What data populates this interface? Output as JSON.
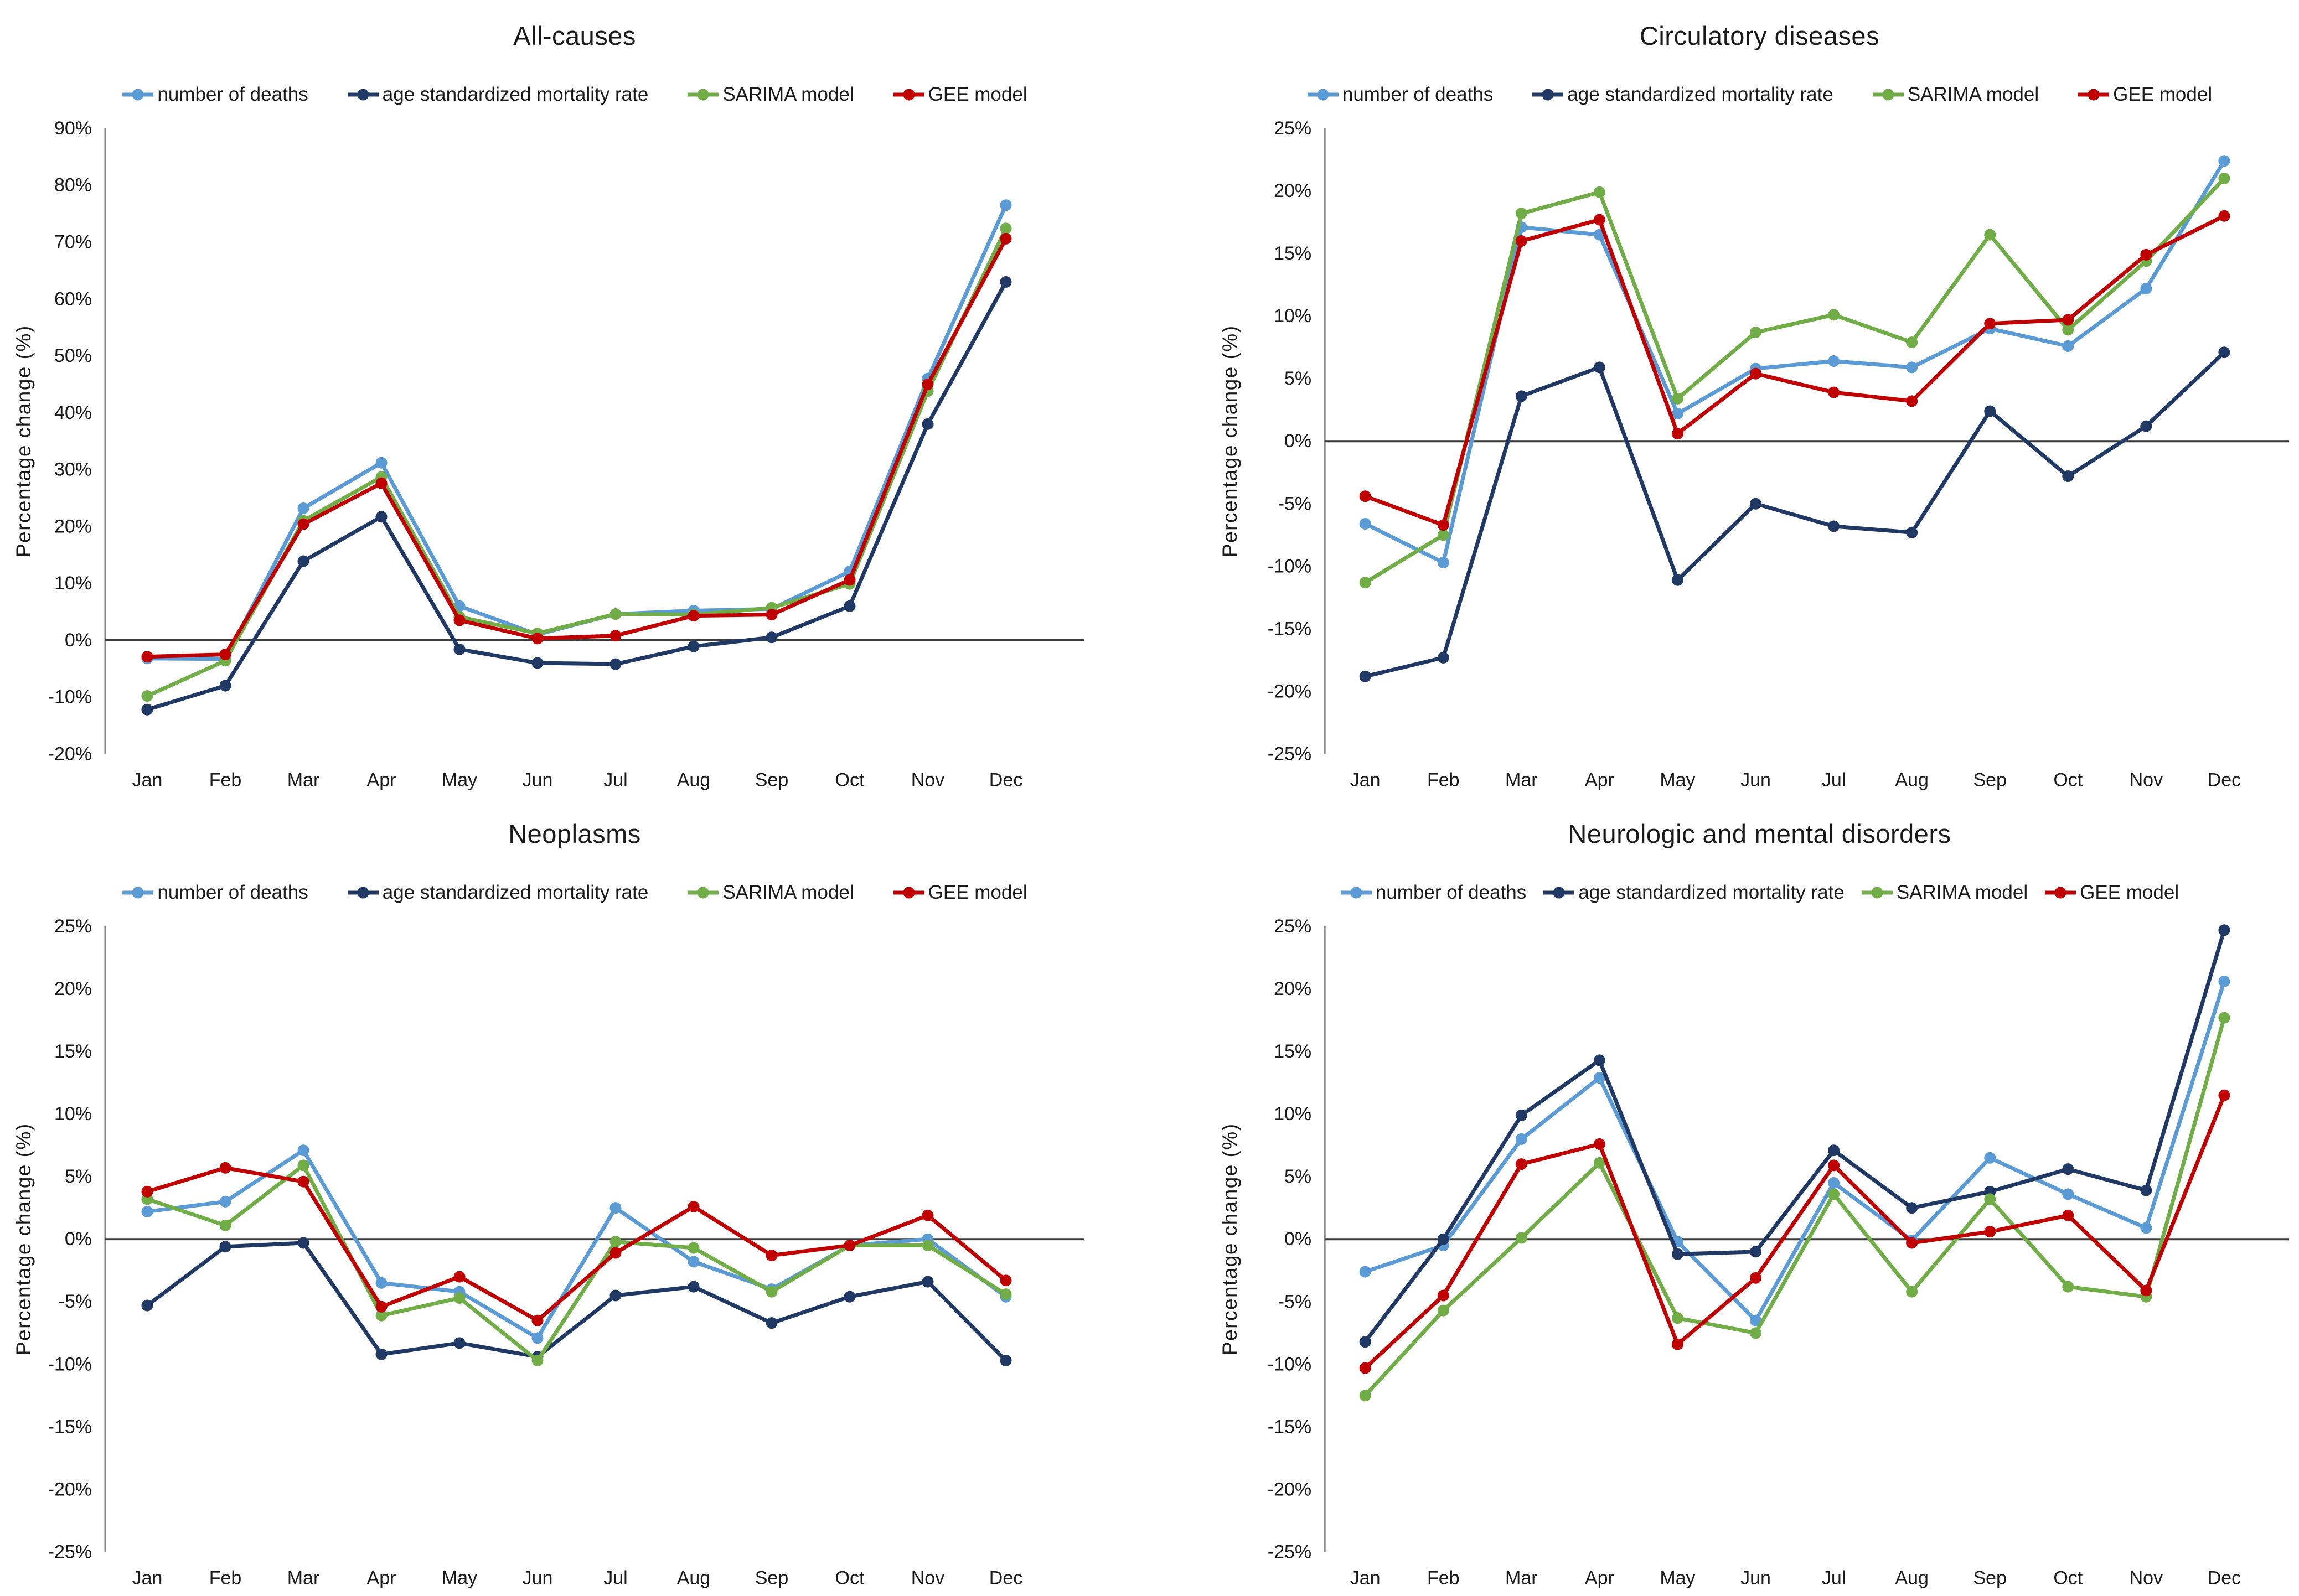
{
  "chart_data": [
    {
      "type": "line",
      "title": "All-causes",
      "ylabel": "Percentage change (%)",
      "xlabel": "",
      "ylim": [
        -20,
        90
      ],
      "ytick_step": 10,
      "ytick_format": "percent",
      "legend_position": "top",
      "grid": false,
      "zero_line": true,
      "categories": [
        "Jan",
        "Feb",
        "Mar",
        "Apr",
        "May",
        "Jun",
        "Jul",
        "Aug",
        "Sep",
        "Oct",
        "Nov",
        "Dec"
      ],
      "series": [
        {
          "name": "number of deaths",
          "color": "#5B9BD5",
          "values": [
            -3.2,
            -3.3,
            23.2,
            31.2,
            6.0,
            1.0,
            4.6,
            5.2,
            5.5,
            12.1,
            46.0,
            76.5
          ]
        },
        {
          "name": "age standardized mortality rate",
          "color": "#1F3864",
          "values": [
            -12.2,
            -8.0,
            13.9,
            21.7,
            -1.6,
            -4.0,
            -4.2,
            -1.1,
            0.5,
            6.0,
            38.0,
            63.0
          ]
        },
        {
          "name": "SARIMA model",
          "color": "#70AD47",
          "values": [
            -9.8,
            -3.6,
            21.0,
            28.7,
            4.1,
            1.2,
            4.6,
            4.5,
            5.7,
            9.9,
            43.8,
            72.4
          ]
        },
        {
          "name": "GEE model",
          "color": "#C00000",
          "values": [
            -2.9,
            -2.5,
            20.4,
            27.6,
            3.5,
            0.3,
            0.8,
            4.3,
            4.5,
            10.6,
            45.0,
            70.6
          ]
        }
      ]
    },
    {
      "type": "line",
      "title": "Circulatory diseases",
      "ylabel": "Percentage change (%)",
      "xlabel": "",
      "ylim": [
        -25,
        25
      ],
      "ytick_step": 5,
      "ytick_format": "percent",
      "legend_position": "top",
      "grid": false,
      "zero_line": true,
      "categories": [
        "Jan",
        "Feb",
        "Mar",
        "Apr",
        "May",
        "Jun",
        "Jul",
        "Aug",
        "Sep",
        "Oct",
        "Nov",
        "Dec"
      ],
      "series": [
        {
          "name": "number of deaths",
          "color": "#5B9BD5",
          "values": [
            -6.6,
            -9.7,
            17.1,
            16.5,
            2.2,
            5.8,
            6.4,
            5.9,
            9.0,
            7.6,
            12.2,
            22.4
          ]
        },
        {
          "name": "age standardized mortality rate",
          "color": "#1F3864",
          "values": [
            -18.8,
            -17.3,
            3.6,
            5.9,
            -11.1,
            -5.0,
            -6.8,
            -7.3,
            2.4,
            -2.8,
            1.2,
            7.1
          ]
        },
        {
          "name": "SARIMA model",
          "color": "#70AD47",
          "values": [
            -11.3,
            -7.5,
            18.2,
            19.9,
            3.4,
            8.7,
            10.1,
            7.9,
            16.5,
            8.9,
            14.4,
            21.0
          ]
        },
        {
          "name": "GEE model",
          "color": "#C00000",
          "values": [
            -4.4,
            -6.7,
            16.0,
            17.7,
            0.6,
            5.4,
            3.9,
            3.2,
            9.4,
            9.7,
            14.9,
            18.0
          ]
        }
      ]
    },
    {
      "type": "line",
      "title": "Neoplasms",
      "ylabel": "Percentage change (%)",
      "xlabel": "",
      "ylim": [
        -25,
        25
      ],
      "ytick_step": 5,
      "ytick_format": "percent",
      "legend_position": "top",
      "grid": false,
      "zero_line": true,
      "categories": [
        "Jan",
        "Feb",
        "Mar",
        "Apr",
        "May",
        "Jun",
        "Jul",
        "Aug",
        "Sep",
        "Oct",
        "Nov",
        "Dec"
      ],
      "series": [
        {
          "name": "number of deaths",
          "color": "#5B9BD5",
          "values": [
            2.2,
            3.0,
            7.1,
            -3.5,
            -4.2,
            -7.9,
            2.5,
            -1.8,
            -4.0,
            -0.5,
            0.0,
            -4.6
          ]
        },
        {
          "name": "age standardized mortality rate",
          "color": "#1F3864",
          "values": [
            -5.3,
            -0.6,
            -0.3,
            -9.2,
            -8.3,
            -9.4,
            -4.5,
            -3.8,
            -6.7,
            -4.6,
            -3.4,
            -9.7
          ]
        },
        {
          "name": "SARIMA model",
          "color": "#70AD47",
          "values": [
            3.2,
            1.1,
            5.9,
            -6.1,
            -4.7,
            -9.7,
            -0.2,
            -0.7,
            -4.2,
            -0.5,
            -0.5,
            -4.4
          ]
        },
        {
          "name": "GEE model",
          "color": "#C00000",
          "values": [
            3.8,
            5.7,
            4.6,
            -5.4,
            -3.0,
            -6.5,
            -1.1,
            2.6,
            -1.3,
            -0.5,
            1.9,
            -3.3
          ]
        }
      ]
    },
    {
      "type": "line",
      "title": "Neurologic and mental disorders",
      "ylabel": "Percentage change (%)",
      "xlabel": "",
      "ylim": [
        -25,
        25
      ],
      "ytick_step": 5,
      "ytick_format": "percent",
      "legend_position": "top",
      "grid": false,
      "zero_line": true,
      "categories": [
        "Jan",
        "Feb",
        "Mar",
        "Apr",
        "May",
        "Jun",
        "Jul",
        "Aug",
        "Sep",
        "Oct",
        "Nov",
        "Dec"
      ],
      "series": [
        {
          "name": "number of deaths",
          "color": "#5B9BD5",
          "values": [
            -2.6,
            -0.5,
            8.0,
            12.9,
            -0.2,
            -6.5,
            4.5,
            -0.1,
            6.5,
            3.6,
            0.9,
            20.6
          ]
        },
        {
          "name": "age standardized mortality rate",
          "color": "#1F3864",
          "values": [
            -8.2,
            0.0,
            9.9,
            14.3,
            -1.2,
            -1.0,
            7.1,
            2.5,
            3.8,
            5.6,
            3.9,
            24.7
          ]
        },
        {
          "name": "SARIMA model",
          "color": "#70AD47",
          "values": [
            -12.5,
            -5.7,
            0.1,
            6.1,
            -6.3,
            -7.5,
            3.6,
            -4.2,
            3.2,
            -3.8,
            -4.6,
            17.7
          ]
        },
        {
          "name": "GEE model",
          "color": "#C00000",
          "values": [
            -10.3,
            -4.5,
            6.0,
            7.6,
            -8.4,
            -3.1,
            5.9,
            -0.3,
            0.6,
            1.9,
            -4.1,
            11.5
          ]
        }
      ]
    }
  ],
  "style": {
    "axis_line_color": "#8C8C8C",
    "zero_line_color": "#3B3B3B",
    "text_color": "#1A1A1A",
    "background": "#FFFFFF"
  }
}
